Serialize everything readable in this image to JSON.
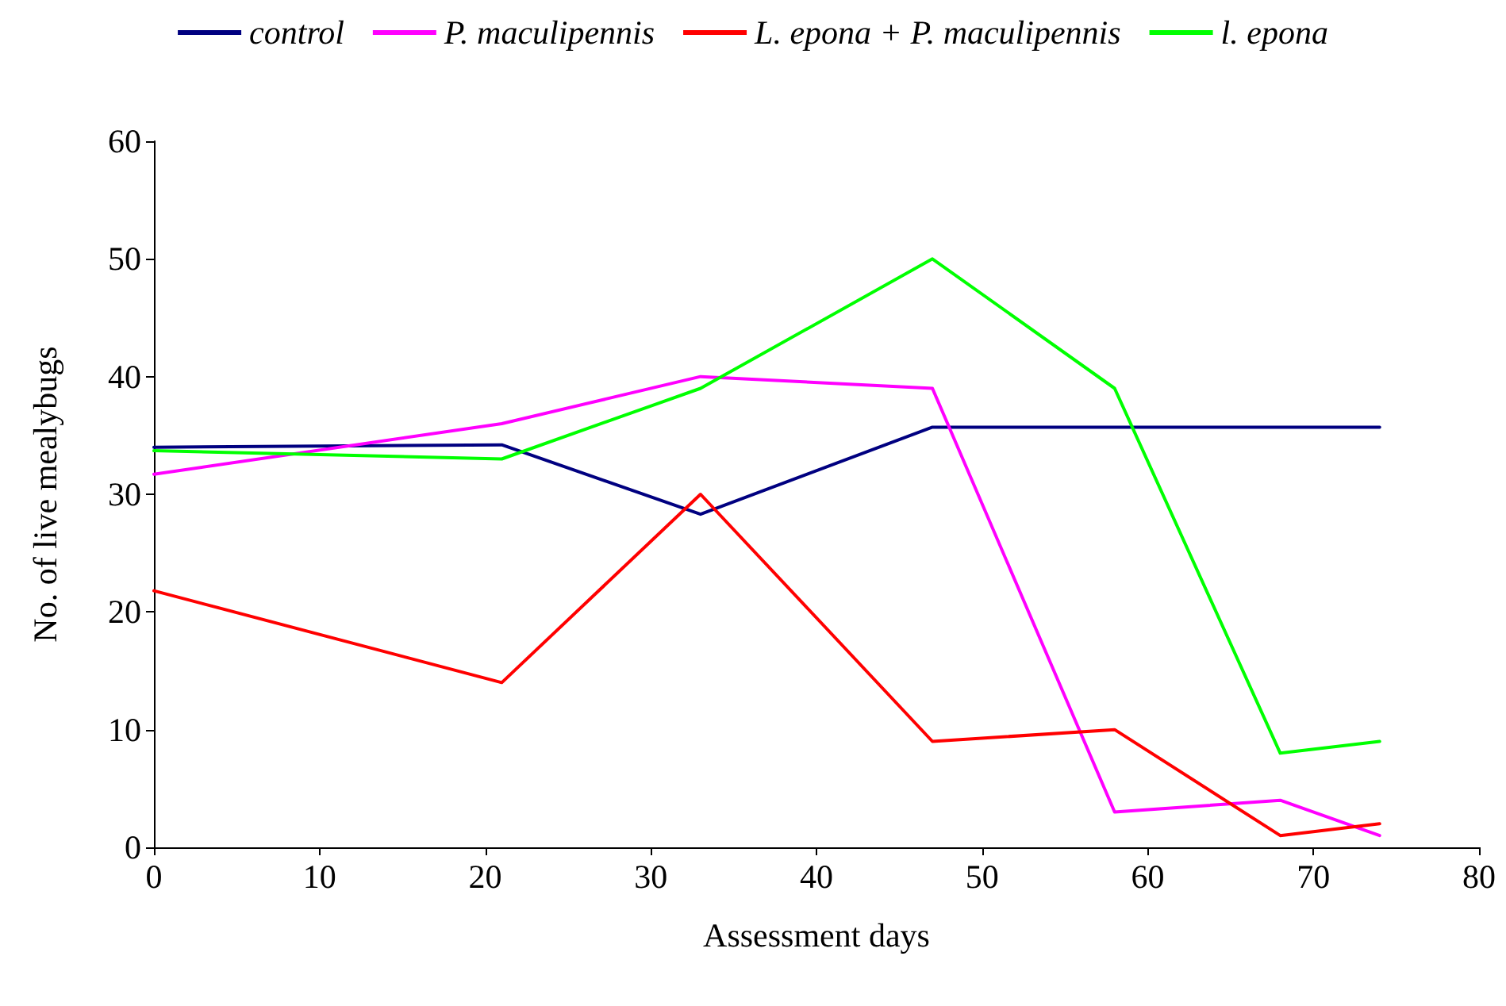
{
  "chart_data": {
    "type": "line",
    "xlabel": "Assessment days",
    "ylabel": "No. of live mealybugs",
    "x": [
      0,
      21,
      33,
      47,
      58,
      68,
      74
    ],
    "series": [
      {
        "name": "control",
        "color": "#000080",
        "values": [
          34,
          34.2,
          28.3,
          35.7,
          35.7,
          35.7,
          35.7
        ]
      },
      {
        "name": "P. maculipennis",
        "color": "#ff00ff",
        "values": [
          31.7,
          36,
          40,
          39,
          3,
          4,
          1
        ]
      },
      {
        "name": "L. epona + P. maculipennis",
        "color": "#ff0000",
        "values": [
          21.8,
          14,
          30,
          9,
          10,
          1,
          2
        ]
      },
      {
        "name": "l. epona",
        "color": "#00ff00",
        "values": [
          33.7,
          33,
          39,
          50,
          39,
          8,
          9
        ]
      }
    ],
    "xlim": [
      0,
      80
    ],
    "xticks": [
      0,
      10,
      20,
      30,
      40,
      50,
      60,
      70,
      80
    ],
    "ylim": [
      0,
      60
    ],
    "yticks": [
      0,
      10,
      20,
      30,
      40,
      50,
      60
    ],
    "grid": false,
    "legend": "top",
    "marker": "none",
    "line_style": "solid"
  }
}
